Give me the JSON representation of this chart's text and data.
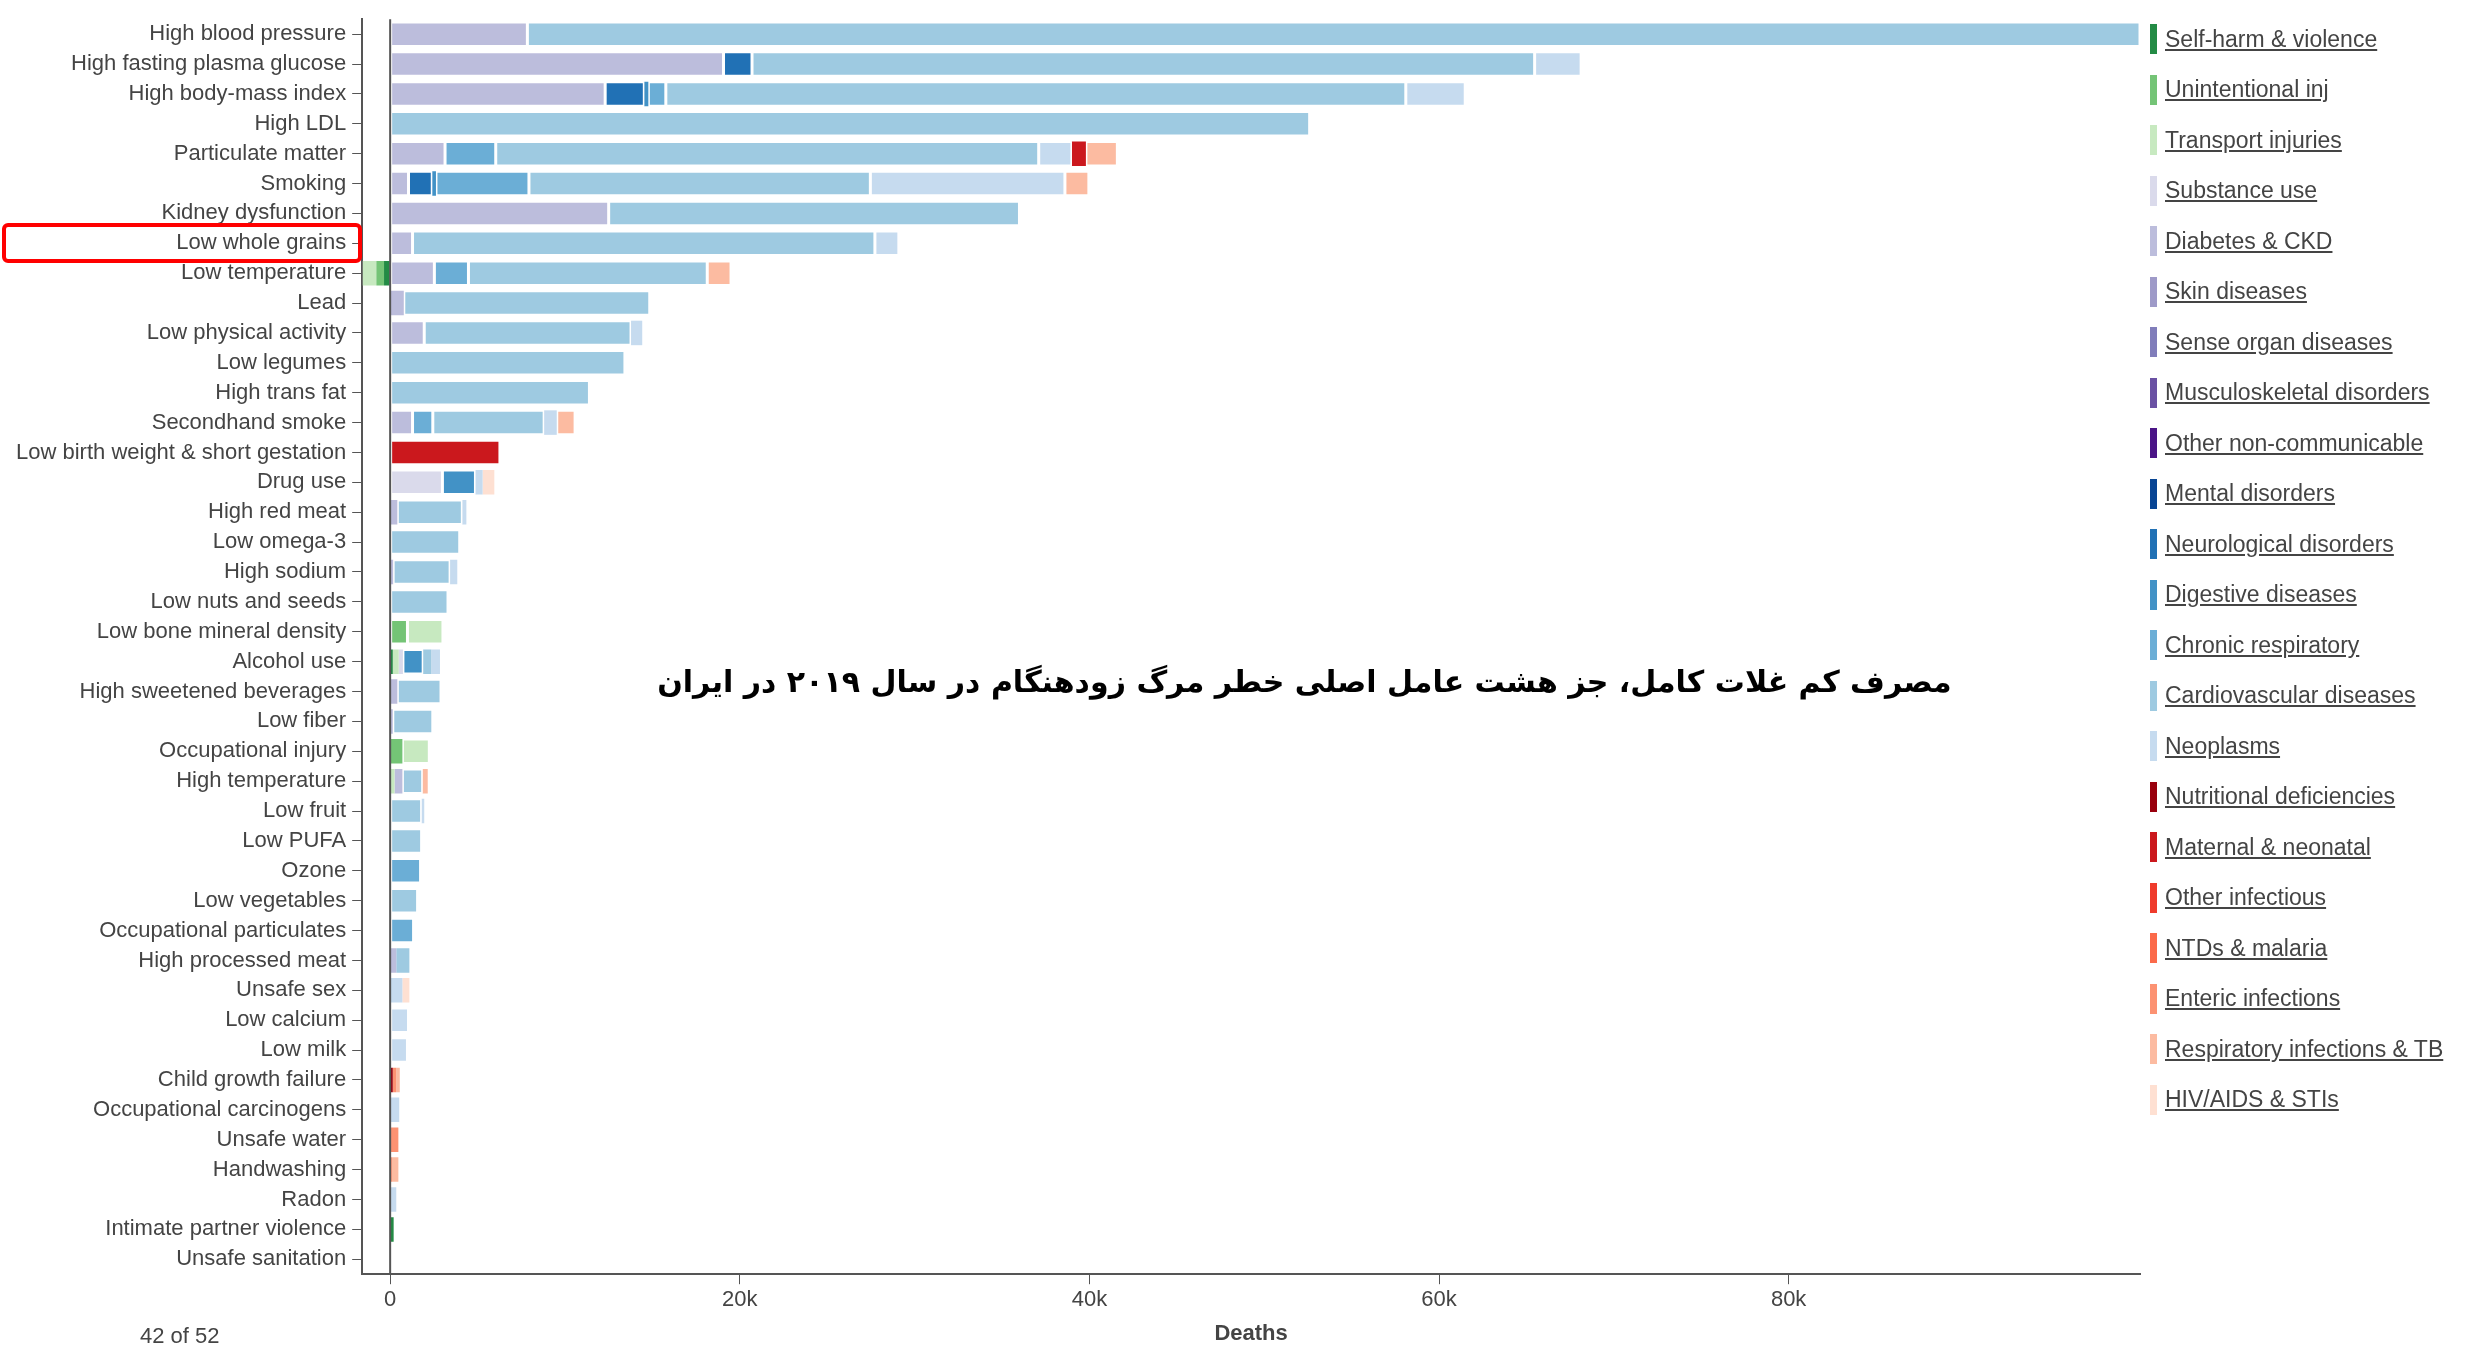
{
  "chart_data": {
    "type": "bar",
    "orientation": "horizontal",
    "stacked": true,
    "xlabel": "Deaths",
    "grid": false,
    "legend": "right",
    "categories": [
      "High blood pressure",
      "High fasting plasma glucose",
      "High body-mass index",
      "High LDL",
      "Particulate matter",
      "Smoking",
      "Kidney dysfunction",
      "Low whole grains",
      "Low temperature",
      "Lead",
      "Low physical activity",
      "Low legumes",
      "High trans fat",
      "Secondhand smoke",
      "Low birth weight & short gestation",
      "Drug use",
      "High red meat",
      "Low omega-3",
      "High sodium",
      "Low nuts and seeds",
      "Low bone mineral density",
      "Alcohol use",
      "High sweetened beverages",
      "Low fiber",
      "Occupational injury",
      "High temperature",
      "Low fruit",
      "Low PUFA",
      "Ozone",
      "Low vegetables",
      "Occupational particulates",
      "High processed meat",
      "Unsafe sex",
      "Low calcium",
      "Low milk",
      "Child growth failure",
      "Occupational carcinogens",
      "Unsafe water",
      "Handwashing",
      "Radon",
      "Intimate partner violence",
      "Unsafe sanitation"
    ],
    "xlim": [
      -1600,
      100100
    ],
    "xticks": [
      0,
      {
        "value": 20000,
        "label": "20k"
      },
      {
        "value": 40000,
        "label": "40k"
      },
      {
        "value": 60000,
        "label": "60k"
      },
      {
        "value": 80000,
        "label": "80k"
      }
    ],
    "ref_lines": [
      {
        "axis": "x",
        "value": 0,
        "color": "#555555"
      }
    ],
    "annotations": [
      "مصرف کم غلات کامل، جز هشت عامل اصلی خطر مرگ زودهنگام در سال ۲۰۱۹ در ایران",
      "42 of 52"
    ],
    "series": [
      {
        "name": "Self-harm & violence",
        "color": "#238b45",
        "values": [
          null,
          null,
          null,
          null,
          null,
          null,
          null,
          null,
          -350,
          null,
          null,
          null,
          null,
          null,
          null,
          null,
          null,
          null,
          null,
          null,
          null,
          150,
          null,
          null,
          null,
          null,
          null,
          null,
          null,
          null,
          null,
          null,
          null,
          null,
          null,
          null,
          null,
          null,
          null,
          null,
          200,
          null
        ]
      },
      {
        "name": "Unintentional inj",
        "color": "#74c476",
        "values": [
          null,
          null,
          null,
          null,
          null,
          null,
          null,
          null,
          -440,
          null,
          null,
          null,
          null,
          null,
          null,
          null,
          null,
          null,
          null,
          null,
          990,
          null,
          null,
          null,
          700,
          null,
          null,
          null,
          null,
          null,
          null,
          null,
          null,
          null,
          null,
          null,
          null,
          null,
          null,
          null,
          null,
          null
        ]
      },
      {
        "name": "Transport injuries",
        "color": "#c7e9c0",
        "values": [
          null,
          null,
          null,
          null,
          null,
          null,
          null,
          null,
          -780,
          null,
          null,
          null,
          null,
          null,
          null,
          null,
          null,
          null,
          null,
          null,
          2030,
          340,
          null,
          null,
          1540,
          250,
          null,
          null,
          null,
          null,
          null,
          null,
          null,
          null,
          null,
          null,
          null,
          null,
          null,
          null,
          null,
          null
        ]
      },
      {
        "name": "Substance use",
        "color": "#dadaeb",
        "values": [
          null,
          null,
          null,
          null,
          null,
          null,
          null,
          null,
          null,
          null,
          null,
          null,
          null,
          null,
          null,
          2990,
          null,
          null,
          null,
          null,
          null,
          240,
          null,
          null,
          null,
          null,
          null,
          null,
          null,
          null,
          null,
          null,
          null,
          null,
          null,
          null,
          null,
          null,
          null,
          null,
          null,
          null
        ]
      },
      {
        "name": "Diabetes & CKD",
        "color": "#bcbddc",
        "values": [
          7850,
          19070,
          12300,
          null,
          3140,
          1050,
          12500,
          1280,
          2530,
          780,
          1950,
          null,
          null,
          1280,
          null,
          null,
          410,
          null,
          170,
          null,
          null,
          null,
          410,
          150,
          null,
          450,
          null,
          null,
          null,
          null,
          null,
          350,
          null,
          null,
          null,
          null,
          null,
          null,
          null,
          null,
          null,
          null
        ]
      },
      {
        "name": "Skin diseases",
        "color": "#9e9ac8",
        "values": [
          null,
          null,
          null,
          null,
          null,
          null,
          null,
          null,
          null,
          null,
          null,
          null,
          null,
          null,
          null,
          null,
          null,
          null,
          null,
          null,
          null,
          null,
          null,
          null,
          null,
          null,
          null,
          null,
          null,
          null,
          null,
          null,
          null,
          null,
          null,
          null,
          null,
          null,
          null,
          null,
          null,
          null
        ]
      },
      {
        "name": "Sense organ diseases",
        "color": "#807dba",
        "values": [
          null,
          null,
          null,
          null,
          null,
          null,
          null,
          null,
          null,
          null,
          null,
          null,
          null,
          null,
          null,
          null,
          null,
          null,
          null,
          null,
          null,
          null,
          null,
          null,
          null,
          null,
          null,
          null,
          null,
          null,
          null,
          null,
          null,
          null,
          null,
          null,
          null,
          null,
          null,
          null,
          null,
          null
        ]
      },
      {
        "name": "Musculoskeletal disorders",
        "color": "#6a51a3",
        "values": [
          null,
          null,
          null,
          null,
          null,
          null,
          null,
          null,
          null,
          null,
          null,
          null,
          null,
          null,
          null,
          null,
          null,
          null,
          null,
          null,
          null,
          null,
          null,
          null,
          null,
          null,
          null,
          null,
          null,
          null,
          null,
          null,
          null,
          null,
          null,
          null,
          null,
          null,
          null,
          null,
          null,
          null
        ]
      },
      {
        "name": "Other non-communicable",
        "color": "#4a1486",
        "values": [
          null,
          null,
          null,
          null,
          null,
          null,
          null,
          null,
          null,
          null,
          null,
          null,
          null,
          null,
          null,
          null,
          null,
          null,
          null,
          null,
          null,
          null,
          null,
          null,
          null,
          null,
          null,
          null,
          null,
          null,
          null,
          null,
          null,
          null,
          null,
          null,
          null,
          null,
          null,
          null,
          null,
          null
        ]
      },
      {
        "name": "Mental disorders",
        "color": "#084594",
        "values": [
          null,
          null,
          null,
          null,
          null,
          null,
          null,
          null,
          null,
          null,
          null,
          null,
          null,
          null,
          null,
          null,
          null,
          null,
          null,
          null,
          null,
          null,
          null,
          null,
          null,
          null,
          null,
          null,
          null,
          null,
          null,
          null,
          null,
          null,
          null,
          null,
          null,
          null,
          null,
          null,
          null,
          null
        ]
      },
      {
        "name": "Neurological disorders",
        "color": "#2171b5",
        "values": [
          null,
          1630,
          2240,
          null,
          null,
          1360,
          null,
          null,
          null,
          null,
          null,
          null,
          null,
          null,
          null,
          null,
          null,
          null,
          null,
          null,
          null,
          null,
          null,
          null,
          null,
          null,
          null,
          null,
          null,
          null,
          null,
          null,
          null,
          null,
          null,
          null,
          null,
          null,
          null,
          null,
          null,
          null
        ]
      },
      {
        "name": "Digestive diseases",
        "color": "#4292c6",
        "values": [
          null,
          null,
          230,
          null,
          null,
          210,
          null,
          null,
          null,
          null,
          null,
          null,
          null,
          null,
          null,
          1890,
          null,
          null,
          null,
          null,
          null,
          1160,
          null,
          null,
          null,
          null,
          null,
          null,
          null,
          null,
          null,
          null,
          null,
          null,
          null,
          null,
          null,
          null,
          null,
          null,
          null,
          null
        ]
      },
      {
        "name": "Chronic respiratory",
        "color": "#6baed6",
        "values": [
          null,
          null,
          1000,
          null,
          2900,
          5320,
          null,
          null,
          1950,
          null,
          null,
          null,
          null,
          1160,
          null,
          null,
          null,
          null,
          null,
          null,
          null,
          null,
          null,
          null,
          null,
          null,
          null,
          null,
          1740,
          null,
          1340,
          null,
          null,
          null,
          null,
          null,
          null,
          null,
          null,
          null,
          null,
          null
        ]
      },
      {
        "name": "Cardiovascular diseases",
        "color": "#9ecae1",
        "values": [
          92250,
          44770,
          42330,
          52600,
          31060,
          19530,
          23500,
          26450,
          13660,
          14070,
          11830,
          13430,
          11400,
          6370,
          null,
          null,
          3720,
          3980,
          3260,
          3310,
          null,
          460,
          2500,
          2290,
          null,
          1160,
          1800,
          1800,
          null,
          1570,
          null,
          750,
          null,
          null,
          null,
          null,
          null,
          null,
          null,
          null,
          null,
          null
        ]
      },
      {
        "name": "Neoplasms",
        "color": "#c6dbef",
        "values": [
          null,
          2660,
          3400,
          null,
          1900,
          11130,
          null,
          1370,
          null,
          null,
          640,
          null,
          null,
          720,
          null,
          410,
          230,
          null,
          410,
          null,
          null,
          500,
          null,
          null,
          null,
          null,
          150,
          null,
          null,
          null,
          null,
          null,
          700,
          1050,
          990,
          null,
          520,
          null,
          null,
          350,
          null,
          null
        ]
      },
      {
        "name": "Nutritional deficiencies",
        "color": "#99000d",
        "values": [
          null,
          null,
          null,
          null,
          null,
          null,
          null,
          null,
          null,
          null,
          null,
          null,
          null,
          null,
          null,
          null,
          null,
          null,
          null,
          null,
          null,
          null,
          null,
          null,
          null,
          null,
          null,
          null,
          null,
          null,
          null,
          null,
          null,
          null,
          null,
          150,
          null,
          null,
          null,
          null,
          null,
          null
        ]
      },
      {
        "name": "Maternal & neonatal",
        "color": "#cb181d",
        "values": [
          null,
          null,
          null,
          null,
          800,
          null,
          null,
          null,
          null,
          null,
          null,
          null,
          null,
          null,
          6280,
          null,
          null,
          null,
          null,
          null,
          null,
          null,
          null,
          null,
          null,
          null,
          null,
          null,
          null,
          null,
          null,
          null,
          null,
          null,
          null,
          null,
          null,
          null,
          null,
          null,
          null,
          null
        ]
      },
      {
        "name": "Other infectious",
        "color": "#ef3b2c",
        "values": [
          null,
          null,
          null,
          null,
          null,
          null,
          null,
          null,
          null,
          null,
          null,
          null,
          null,
          null,
          null,
          null,
          null,
          null,
          null,
          null,
          null,
          null,
          null,
          null,
          null,
          null,
          null,
          null,
          null,
          null,
          null,
          null,
          null,
          null,
          null,
          null,
          null,
          null,
          null,
          null,
          null,
          null
        ]
      },
      {
        "name": "NTDs & malaria",
        "color": "#fb6a4a",
        "values": [
          null,
          null,
          null,
          null,
          null,
          null,
          null,
          null,
          null,
          null,
          null,
          null,
          null,
          null,
          null,
          null,
          null,
          null,
          null,
          null,
          null,
          null,
          null,
          null,
          null,
          null,
          null,
          null,
          null,
          null,
          null,
          null,
          null,
          null,
          null,
          null,
          null,
          null,
          null,
          null,
          null,
          null
        ]
      },
      {
        "name": "Enteric infections",
        "color": "#fc9272",
        "values": [
          null,
          null,
          null,
          null,
          null,
          null,
          null,
          null,
          null,
          null,
          null,
          null,
          null,
          null,
          null,
          null,
          null,
          null,
          null,
          null,
          null,
          null,
          null,
          null,
          null,
          null,
          null,
          null,
          null,
          null,
          null,
          null,
          null,
          null,
          null,
          200,
          null,
          470,
          100,
          null,
          null,
          null
        ]
      },
      {
        "name": "Respiratory infections & TB",
        "color": "#fcbba1",
        "values": [
          null,
          null,
          null,
          null,
          1800,
          1370,
          null,
          null,
          1360,
          null,
          null,
          null,
          null,
          1050,
          null,
          null,
          null,
          null,
          null,
          null,
          null,
          null,
          null,
          null,
          null,
          290,
          null,
          null,
          null,
          null,
          null,
          null,
          null,
          null,
          null,
          200,
          null,
          null,
          370,
          null,
          null,
          null
        ]
      },
      {
        "name": "HIV/AIDS & STIs",
        "color": "#fee0d2",
        "values": [
          null,
          null,
          null,
          null,
          null,
          null,
          null,
          null,
          null,
          null,
          null,
          null,
          null,
          null,
          null,
          670,
          null,
          null,
          null,
          null,
          null,
          null,
          null,
          null,
          null,
          null,
          null,
          null,
          null,
          null,
          null,
          null,
          400,
          null,
          null,
          null,
          null,
          null,
          null,
          null,
          null,
          null
        ]
      }
    ]
  }
}
